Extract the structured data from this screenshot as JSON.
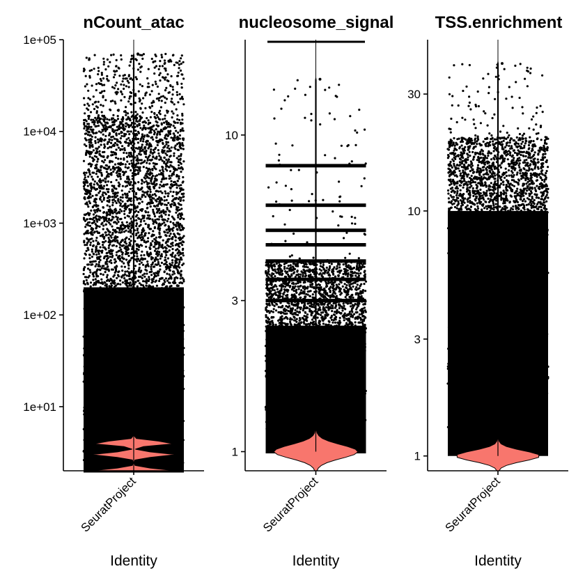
{
  "chart_data": [
    {
      "type": "violin",
      "title": "nCount_atac",
      "xlabel": "Identity",
      "ylabel": "",
      "scale": "log10",
      "ylim": [
        2,
        100000
      ],
      "y_ticks": [
        10,
        100,
        1000,
        10000,
        100000
      ],
      "y_tick_labels": [
        "1e+01",
        "1e+02",
        "1e+03",
        "1e+04",
        "1e+05"
      ],
      "categories": [
        "SeuratProject"
      ],
      "fill_color": "#f8766d",
      "point_color": "#000000",
      "points": {
        "dense_range": [
          2,
          200
        ],
        "medium_range": [
          200,
          15000
        ],
        "sparse_range": [
          15000,
          70000
        ],
        "max": 70000,
        "discrete_levels": [
          2,
          3,
          4,
          5,
          6,
          7,
          8,
          9
        ]
      },
      "violin_peaks": [
        2,
        3,
        4
      ]
    },
    {
      "type": "violin",
      "title": "nucleosome_signal",
      "xlabel": "Identity",
      "ylabel": "",
      "scale": "log10",
      "ylim": [
        0.87,
        20
      ],
      "y_ticks": [
        1,
        3,
        10
      ],
      "y_tick_labels": [
        "1",
        "3",
        "10"
      ],
      "categories": [
        "SeuratProject"
      ],
      "fill_color": "#f8766d",
      "point_color": "#000000",
      "points": {
        "dense_range": [
          1,
          2.5
        ],
        "medium_range": [
          2.5,
          4
        ],
        "sparse_range": [
          4,
          15
        ],
        "max": 15,
        "discrete_levels": [
          1,
          3,
          3.5,
          4,
          4.5,
          5,
          6,
          8
        ]
      },
      "violin_peaks": [
        1
      ]
    },
    {
      "type": "violin",
      "title": "TSS.enrichment",
      "xlabel": "Identity",
      "ylabel": "",
      "scale": "log10",
      "ylim": [
        0.87,
        50
      ],
      "y_ticks": [
        1,
        3,
        10,
        30
      ],
      "y_tick_labels": [
        "1",
        "3",
        "10",
        "30"
      ],
      "categories": [
        "SeuratProject"
      ],
      "fill_color": "#f8766d",
      "point_color": "#000000",
      "points": {
        "dense_range": [
          1,
          10
        ],
        "medium_range": [
          10,
          20
        ],
        "sparse_range": [
          20,
          40
        ],
        "max": 40,
        "discrete_levels": []
      },
      "violin_peaks": [
        1
      ]
    }
  ]
}
